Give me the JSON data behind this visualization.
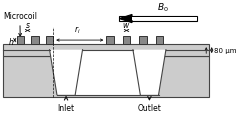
{
  "fig_width": 2.36,
  "fig_height": 1.14,
  "dpi": 100,
  "bg_color": "#ffffff",
  "chip_color": "#cccccc",
  "chip_outline": "#444444",
  "coil_color": "#888888",
  "coil_outline": "#333333",
  "channel_color": "#e8e8e8",
  "channel_inner": "#ffffff",
  "arrow_color": "#111111",
  "text_color": "#000000",
  "label_microcoil": "Microcoil",
  "label_inlet": "Inlet",
  "label_outlet": "Outlet",
  "label_80um": "80 μm"
}
